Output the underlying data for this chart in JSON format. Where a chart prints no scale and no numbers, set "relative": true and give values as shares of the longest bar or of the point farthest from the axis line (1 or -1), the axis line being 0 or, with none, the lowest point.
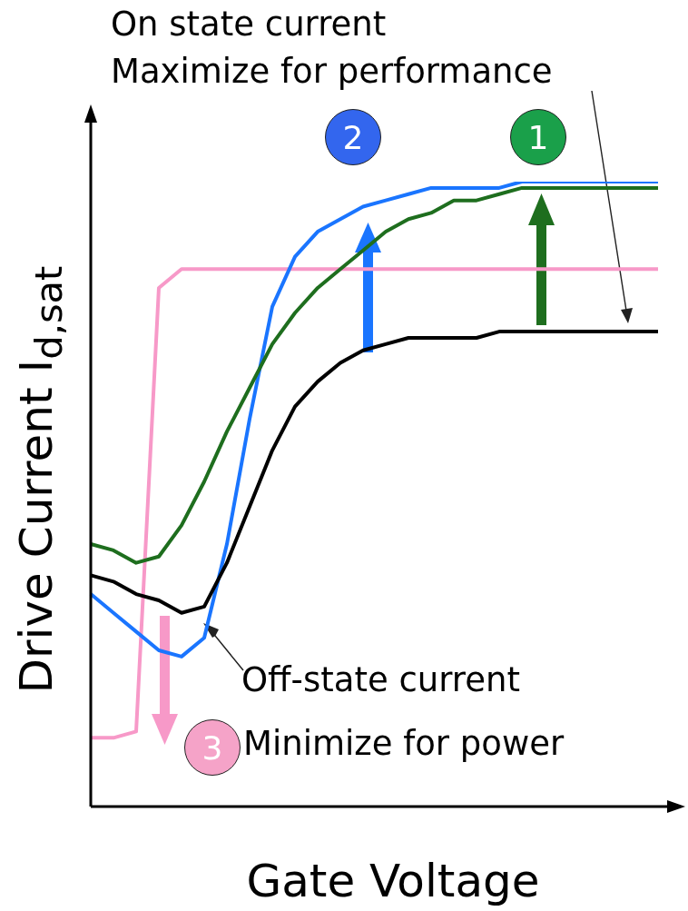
{
  "chart_data": {
    "type": "line",
    "relative": true,
    "xlabel": "Gate Voltage",
    "ylabel": "Drive Current I$_{d,sat}$",
    "annotations": [
      "On state current",
      "Maximize for performance",
      "Off-state current",
      "Minimize for power",
      "1",
      "2",
      "3"
    ],
    "categories": [
      null,
      null,
      null,
      null,
      null,
      null,
      null,
      null,
      null,
      null,
      null,
      null,
      null,
      null,
      null,
      null,
      null,
      null,
      null,
      null,
      null,
      null,
      null,
      null,
      null,
      null
    ],
    "series": [
      {
        "color": "#000000",
        "values": [
          0.37,
          0.36,
          0.34,
          0.33,
          0.31,
          0.32,
          0.39,
          0.48,
          0.57,
          0.64,
          0.68,
          0.71,
          0.73,
          0.74,
          0.75,
          0.75,
          0.75,
          0.75,
          0.76,
          0.76,
          0.76,
          0.76,
          0.76,
          0.76,
          0.76,
          0.76
        ]
      },
      {
        "color": "#1e6e1e",
        "values": [
          0.42,
          0.41,
          0.39,
          0.4,
          0.45,
          0.52,
          0.6,
          0.67,
          0.74,
          0.79,
          0.83,
          0.86,
          0.89,
          0.92,
          0.94,
          0.95,
          0.97,
          0.97,
          0.98,
          0.99,
          0.99,
          0.99,
          0.99,
          0.99,
          0.99,
          0.99
        ]
      },
      {
        "color": "#1a75ff",
        "values": [
          0.34,
          0.31,
          0.28,
          0.25,
          0.24,
          0.27,
          0.42,
          0.62,
          0.8,
          0.88,
          0.92,
          0.94,
          0.96,
          0.97,
          0.98,
          0.99,
          0.99,
          0.99,
          0.99,
          1,
          1,
          1,
          1,
          1,
          1,
          1
        ]
      },
      {
        "color": "#f799c8",
        "values": [
          0.11,
          0.11,
          0.12,
          0.83,
          0.86,
          0.86,
          0.86,
          0.86,
          0.86,
          0.86,
          0.86,
          0.86,
          0.86,
          0.86,
          0.86,
          0.86,
          0.86,
          0.86,
          0.86,
          0.86,
          0.86,
          0.86,
          0.86,
          0.86,
          0.86,
          0.86
        ]
      }
    ]
  }
}
